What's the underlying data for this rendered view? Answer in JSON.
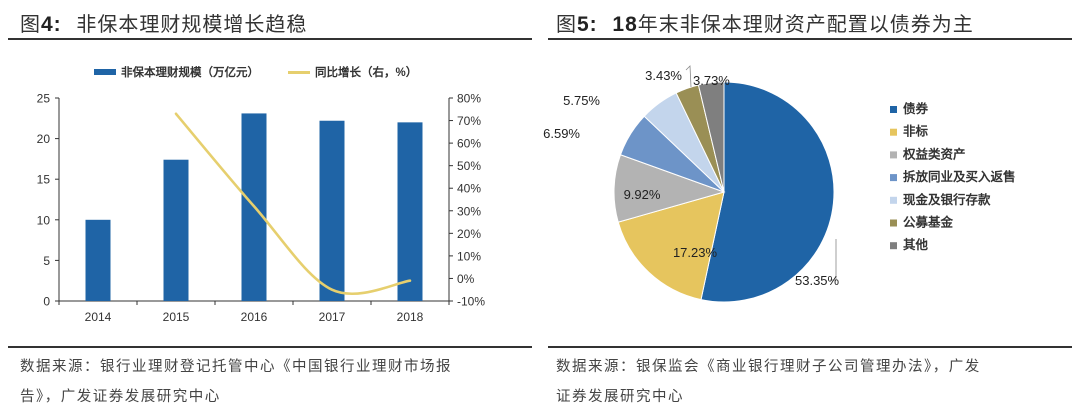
{
  "figure4": {
    "title_prefix": "图",
    "title_number": "4:",
    "title_text": "非保本理财规模增长趋稳",
    "source_line1": "数据来源：银行业理财登记托管中心《中国银行业理财市场报",
    "source_line2": "告》，广发证券发展研究中心"
  },
  "figure5": {
    "title_prefix": "图",
    "title_number": "5:",
    "title_year": "18",
    "title_text": "年末非保本理财资产配置以债券为主",
    "source_line1": "数据来源：银保监会《商业银行理财子公司管理办法》，广发",
    "source_line2": "证券发展研究中心"
  },
  "chart_data": [
    {
      "type": "bar",
      "title": "非保本理财规模增长趋稳",
      "categories": [
        "2014",
        "2015",
        "2016",
        "2017",
        "2018"
      ],
      "series": [
        {
          "name": "非保本理财规模（万亿元）",
          "type": "bar",
          "axis": "left",
          "color": "#1f64a6",
          "values": [
            10.0,
            17.4,
            23.1,
            22.2,
            22.0
          ]
        },
        {
          "name": "同比增长（右，%）",
          "type": "line",
          "axis": "right",
          "color": "#e6cf6e",
          "values": [
            null,
            73,
            32,
            -5,
            -1
          ]
        }
      ],
      "ylim_left": [
        0,
        25
      ],
      "yticks_left": [
        "0",
        "5",
        "10",
        "15",
        "20",
        "25"
      ],
      "ylim_right": [
        -10,
        80
      ],
      "yticks_right": [
        "-10%",
        "0%",
        "10%",
        "20%",
        "30%",
        "40%",
        "50%",
        "60%",
        "70%",
        "80%"
      ],
      "legend": "top",
      "grid": false
    },
    {
      "type": "pie",
      "title": "18年末非保本理财资产配置以债券为主",
      "slices": [
        {
          "name": "债券",
          "value": 53.35,
          "label": "53.35%",
          "color": "#1f64a6"
        },
        {
          "name": "非标",
          "value": 17.23,
          "label": "17.23%",
          "color": "#e6c55e"
        },
        {
          "name": "权益类资产",
          "value": 9.92,
          "label": "9.92%",
          "color": "#b3b3b3"
        },
        {
          "name": "拆放同业及买入返售",
          "value": 6.59,
          "label": "6.59%",
          "color": "#6d94c8"
        },
        {
          "name": "现金及银行存款",
          "value": 5.75,
          "label": "5.75%",
          "color": "#c3d5ec"
        },
        {
          "name": "公募基金",
          "value": 3.43,
          "label": "3.43%",
          "color": "#9a8f55"
        },
        {
          "name": "其他",
          "value": 3.73,
          "label": "3.73%",
          "color": "#7f7f7f"
        }
      ],
      "legend": "right"
    }
  ]
}
